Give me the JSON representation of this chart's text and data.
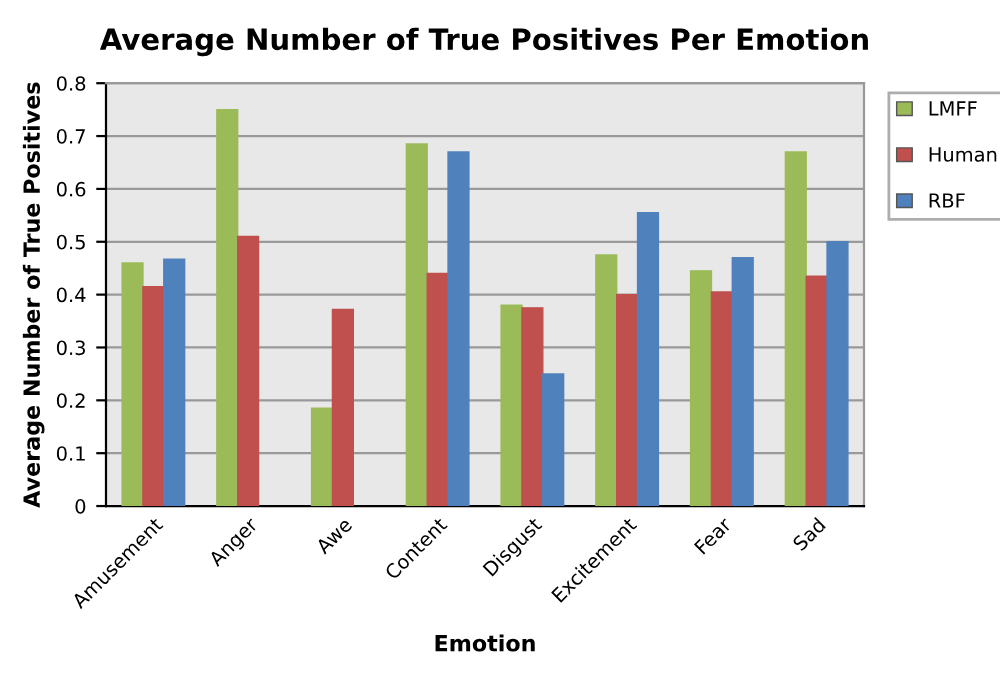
{
  "chart_data": {
    "type": "bar",
    "title": "Average Number of True Positives Per Emotion",
    "xlabel": "Emotion",
    "ylabel": "Average Number of True Positives",
    "categories": [
      "Amusement",
      "Anger",
      "Awe",
      "Content",
      "Disgust",
      "Excitement",
      "Fear",
      "Sad"
    ],
    "series": [
      {
        "name": "LMFF",
        "color": "#9bbb59",
        "values": [
          0.46,
          0.75,
          0.185,
          0.685,
          0.38,
          0.475,
          0.445,
          0.67
        ]
      },
      {
        "name": "Human",
        "color": "#c0504d",
        "values": [
          0.415,
          0.51,
          0.372,
          0.44,
          0.375,
          0.4,
          0.405,
          0.435
        ]
      },
      {
        "name": "RBF",
        "color": "#4f81bd",
        "values": [
          0.467,
          null,
          null,
          0.67,
          0.25,
          0.555,
          0.47,
          0.5
        ]
      }
    ],
    "ylim": [
      0,
      0.8
    ],
    "yticks": [
      0,
      0.1,
      0.2,
      0.3,
      0.4,
      0.5,
      0.6,
      0.7,
      0.8
    ],
    "grid": "y",
    "legend": "top right"
  }
}
